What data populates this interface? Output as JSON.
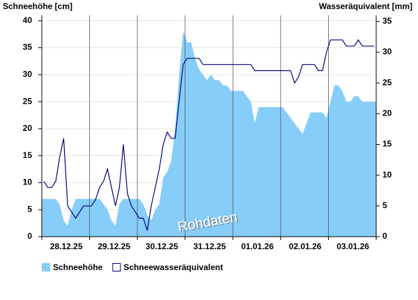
{
  "chart_data": {
    "type": "area-line",
    "y_label": "Schneehöhe [cm]",
    "y2_label": "Wasseräquivalent [mm]",
    "annotation": "Rohdaten",
    "categories": [
      null,
      null,
      null,
      null,
      null,
      null,
      "28.12.25",
      null,
      null,
      null,
      null,
      null,
      null,
      null,
      null,
      null,
      null,
      null,
      "29.12.25",
      null,
      null,
      null,
      null,
      null,
      null,
      null,
      null,
      null,
      null,
      null,
      "30.12.25",
      null,
      null,
      null,
      null,
      null,
      null,
      null,
      null,
      null,
      null,
      null,
      "31.12.25",
      null,
      null,
      null,
      null,
      null,
      null,
      null,
      null,
      null,
      null,
      null,
      "01.01.26",
      null,
      null,
      null,
      null,
      null,
      null,
      null,
      null,
      null,
      null,
      null,
      "02.01.26",
      null,
      null,
      null,
      null,
      null,
      null,
      null,
      null,
      null,
      null,
      null,
      "03.01.26",
      null,
      null,
      null,
      null,
      null
    ],
    "series": [
      {
        "name": "Schneehöhe",
        "color": "#87cdf9",
        "axis": "y",
        "values": [
          7,
          7,
          7,
          7,
          6,
          3,
          2,
          5,
          7,
          7,
          7,
          7,
          7,
          7,
          7,
          6,
          5,
          3,
          2,
          6,
          7,
          7,
          7,
          7,
          7,
          6,
          4,
          3,
          5,
          6,
          11,
          12,
          14,
          20,
          30,
          38,
          36,
          36,
          33,
          31,
          30,
          29,
          30,
          29,
          29,
          28,
          28,
          27,
          27,
          27,
          27,
          26,
          25,
          21,
          24,
          24,
          24,
          24,
          24,
          24,
          24,
          23,
          22,
          21,
          20,
          19,
          21,
          23,
          23,
          23,
          23,
          22,
          25,
          28,
          28,
          27,
          25,
          25,
          26,
          26,
          25,
          25,
          25,
          25
        ]
      },
      {
        "name": "Schneewasseräquivalent",
        "color": "#000080",
        "axis": "y2",
        "values": [
          9,
          8,
          8,
          9,
          13,
          16,
          5,
          4,
          3,
          4,
          5,
          5,
          5,
          6,
          8,
          9,
          11,
          8,
          5,
          8,
          15,
          7,
          5,
          4,
          3,
          3,
          1,
          5,
          8,
          11,
          15,
          17,
          16,
          16,
          22,
          28,
          29,
          29,
          29,
          29,
          28,
          28,
          28,
          28,
          28,
          28,
          28,
          28,
          28,
          28,
          28,
          28,
          28,
          27,
          27,
          27,
          27,
          27,
          27,
          27,
          27,
          27,
          27,
          25,
          26,
          28,
          28,
          28,
          28,
          27,
          27,
          30,
          32,
          32,
          32,
          32,
          31,
          31,
          31,
          32,
          31,
          31,
          31,
          31
        ]
      }
    ],
    "ylim": [
      0,
      41
    ],
    "yticks": [
      0,
      5,
      10,
      15,
      20,
      25,
      30,
      35,
      40
    ],
    "y2lim": [
      0,
      36
    ],
    "y2ticks": [
      0,
      5,
      10,
      15,
      20,
      25,
      30,
      35
    ],
    "grid": true
  }
}
